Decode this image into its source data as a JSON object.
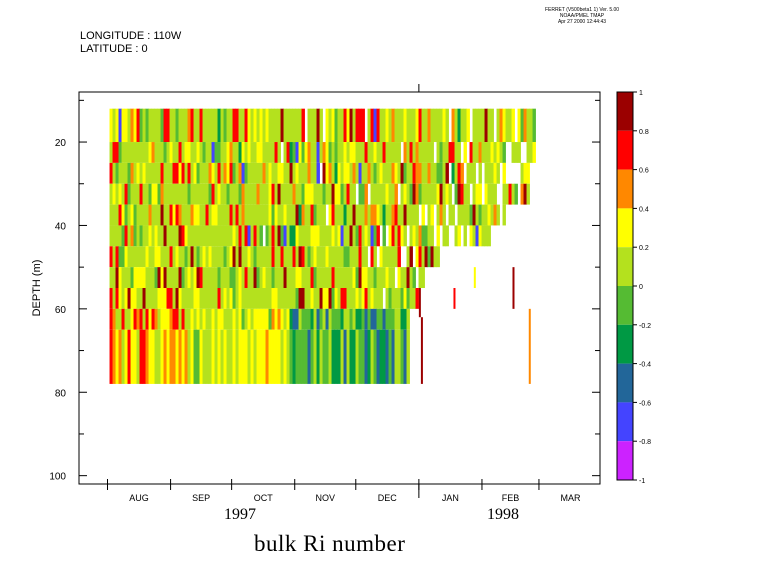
{
  "header": {
    "longitude": "LONGITUDE : 110W",
    "latitude": "LATITUDE : 0",
    "ferret": [
      "FERRET (V500beta1 1)  Ver. 5.00",
      "NOAA/PMEL TMAP",
      "Apr 27 2000 12:44:43"
    ]
  },
  "years": [
    "1997",
    "1998"
  ],
  "colorbar": {
    "labels": [
      "1",
      "0.8",
      "0.6",
      "0.4",
      "0.2",
      "0",
      "-0.2",
      "-0.4",
      "-0.6",
      "-0.8",
      "-1"
    ],
    "colors": [
      "#9b0000",
      "#ff0000",
      "#ff8800",
      "#ffff00",
      "#b4e11e",
      "#55bb33",
      "#009944",
      "#226699",
      "#4444ff",
      "#cc22ff"
    ]
  },
  "chart_data": {
    "type": "heatmap",
    "title": "bulk Ri number",
    "xlabel": "",
    "ylabel": "DEPTH (m)",
    "ylim": [
      102,
      8
    ],
    "y_ticks": [
      20,
      40,
      60,
      80,
      100
    ],
    "x_months": [
      "AUG",
      "SEP",
      "OCT",
      "NOV",
      "DEC",
      "JAN",
      "FEB",
      "MAR"
    ],
    "x_start": "1997-07-18",
    "x_end": "1998-03-31",
    "colorbar_range": [
      -1,
      1
    ],
    "depth_levels": [
      {
        "top": 12,
        "bottom": 20,
        "end": "1998-02-27"
      },
      {
        "top": 20,
        "bottom": 25,
        "end": "1998-02-26"
      },
      {
        "top": 25,
        "bottom": 30,
        "end": "1998-02-24"
      },
      {
        "top": 30,
        "bottom": 35,
        "end": "1998-02-24"
      },
      {
        "top": 35,
        "bottom": 40,
        "end": "1998-02-12"
      },
      {
        "top": 40,
        "bottom": 45,
        "end": "1998-02-05"
      },
      {
        "top": 45,
        "bottom": 50,
        "end": "1998-01-10"
      },
      {
        "top": 50,
        "bottom": 55,
        "end": "1998-01-03"
      },
      {
        "top": 55,
        "bottom": 60,
        "end": "1998-01-01"
      },
      {
        "top": 60,
        "bottom": 65,
        "end": "1997-12-26"
      },
      {
        "top": 65,
        "bottom": 78,
        "end": "1997-12-27"
      }
    ],
    "color_bins": [
      -1,
      -0.8,
      -0.6,
      -0.4,
      -0.2,
      0,
      0.2,
      0.4,
      0.6,
      0.8,
      1
    ]
  }
}
